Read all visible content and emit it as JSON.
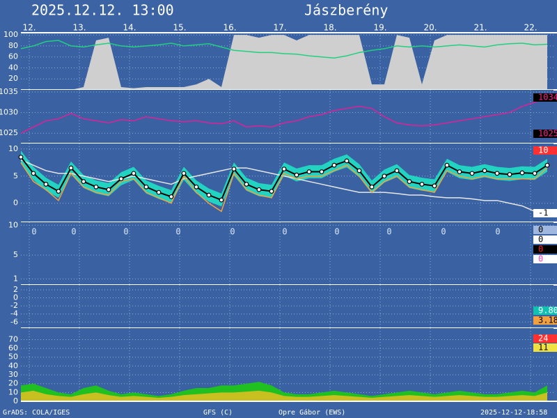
{
  "header": {
    "time": "2025.12.12.  13:00",
    "place": "Jászberény"
  },
  "footer": [
    "GrADS: COLA/IGES",
    "GFS (C)",
    "Opre Gábor (EWS)",
    "2025-12-12-18:58"
  ],
  "chart_data": [
    {
      "type": "area",
      "xlim": [
        0,
        255
      ],
      "xticks": [
        {
          "value": 4,
          "label": "12."
        },
        {
          "value": 28,
          "label": "13."
        },
        {
          "value": 52,
          "label": "14."
        },
        {
          "value": 76,
          "label": "15."
        },
        {
          "value": 100,
          "label": "16."
        },
        {
          "value": 124,
          "label": "17."
        },
        {
          "value": 148,
          "label": "18."
        },
        {
          "value": 172,
          "label": "19."
        },
        {
          "value": 196,
          "label": "20."
        },
        {
          "value": 220,
          "label": "21."
        },
        {
          "value": 244,
          "label": "22."
        }
      ],
      "ylim": [
        0,
        104
      ],
      "yticks": [
        20,
        40,
        60,
        80,
        100
      ],
      "grid": true,
      "x": [
        0,
        6,
        12,
        18,
        24,
        30,
        36,
        42,
        48,
        54,
        60,
        66,
        72,
        78,
        84,
        90,
        96,
        102,
        108,
        114,
        120,
        126,
        132,
        138,
        144,
        150,
        156,
        162,
        168,
        174,
        180,
        186,
        192,
        198,
        204,
        210,
        216,
        222,
        228,
        234,
        240,
        246,
        252
      ],
      "series": [
        {
          "style": "area",
          "color": "#cfcfcf",
          "values": [
            0,
            0,
            0,
            0,
            0,
            5,
            90,
            95,
            5,
            3,
            5,
            5,
            5,
            5,
            10,
            20,
            5,
            100,
            100,
            95,
            100,
            100,
            90,
            100,
            100,
            100,
            100,
            100,
            10,
            10,
            100,
            95,
            10,
            90,
            100,
            100,
            100,
            100,
            100,
            100,
            100,
            100,
            100
          ]
        },
        {
          "style": "line",
          "color": "#20d080",
          "values": [
            75,
            80,
            88,
            90,
            80,
            78,
            82,
            85,
            80,
            78,
            80,
            82,
            85,
            80,
            82,
            84,
            78,
            72,
            70,
            68,
            68,
            66,
            65,
            62,
            60,
            58,
            62,
            68,
            72,
            75,
            80,
            78,
            80,
            78,
            80,
            82,
            80,
            78,
            82,
            84,
            85,
            82,
            83
          ]
        }
      ]
    },
    {
      "type": "line",
      "xlim": [
        0,
        255
      ],
      "ylim": [
        1022.5,
        1035.5
      ],
      "yticks": [
        1025,
        1030,
        1035
      ],
      "grid": true,
      "x": [
        0,
        6,
        12,
        18,
        24,
        30,
        36,
        42,
        48,
        54,
        60,
        66,
        72,
        78,
        84,
        90,
        96,
        102,
        108,
        114,
        120,
        126,
        132,
        138,
        144,
        150,
        156,
        162,
        168,
        174,
        180,
        186,
        192,
        198,
        204,
        210,
        216,
        222,
        228,
        234,
        240,
        246,
        252
      ],
      "series": [
        {
          "style": "line",
          "color": "#e0209a",
          "values": [
            1025,
            1026.5,
            1028,
            1028.5,
            1029.8,
            1028.5,
            1028,
            1027.5,
            1028.3,
            1028,
            1029,
            1028.5,
            1028,
            1027.8,
            1028,
            1027.5,
            1027.3,
            1028,
            1026.5,
            1026.8,
            1026.5,
            1027.5,
            1028,
            1029,
            1029.5,
            1030.5,
            1031,
            1031.5,
            1031,
            1029,
            1027.5,
            1027,
            1026.8,
            1027,
            1027.5,
            1028,
            1028.5,
            1029,
            1029.5,
            1030,
            1031.5,
            1032.5,
            1033.5
          ]
        }
      ],
      "labels": [
        {
          "text": "1034",
          "color": "#ff2090",
          "bg": "#000000"
        },
        {
          "text": "1025",
          "color": "#ff2090",
          "bg": "#000000"
        }
      ]
    },
    {
      "type": "line",
      "xlim": [
        0,
        255
      ],
      "ylim": [
        -3.5,
        11
      ],
      "yticks": [
        0,
        5,
        10
      ],
      "grid": true,
      "x": [
        0,
        6,
        12,
        18,
        24,
        30,
        36,
        42,
        48,
        54,
        60,
        66,
        72,
        78,
        84,
        90,
        96,
        102,
        108,
        114,
        120,
        126,
        132,
        138,
        144,
        150,
        156,
        162,
        168,
        174,
        180,
        186,
        192,
        198,
        204,
        210,
        216,
        222,
        228,
        234,
        240,
        246,
        252
      ],
      "series": [
        {
          "style": "band",
          "color": "#20e8c8",
          "low": [
            7.3,
            4.3,
            2.3,
            1.0,
            5.3,
            2.8,
            1.8,
            1.3,
            3.3,
            4.3,
            1.8,
            0.8,
            0.0,
            4.3,
            1.8,
            0.3,
            -0.6,
            5.1,
            2.3,
            1.3,
            1.0,
            5.1,
            4.0,
            4.6,
            4.6,
            5.8,
            6.6,
            4.8,
            1.8,
            3.8,
            4.8,
            2.8,
            2.3,
            2.0,
            5.8,
            4.6,
            4.3,
            4.8,
            4.3,
            4.1,
            4.4,
            4.3,
            5.8
          ],
          "values": [
            9.7,
            6.7,
            4.7,
            3.4,
            7.7,
            5.2,
            4.2,
            3.7,
            5.7,
            6.7,
            4.2,
            3.2,
            2.4,
            6.7,
            4.2,
            2.7,
            1.8,
            7.5,
            4.7,
            3.7,
            3.4,
            7.5,
            6.4,
            7.0,
            7.0,
            8.2,
            9.0,
            7.2,
            4.2,
            6.2,
            7.2,
            5.2,
            4.7,
            4.4,
            8.2,
            7.0,
            6.7,
            7.2,
            6.7,
            6.5,
            6.8,
            6.7,
            8.2
          ]
        },
        {
          "style": "line",
          "color": "#e8e8e8",
          "values": [
            8,
            7,
            6,
            5.5,
            5.5,
            5,
            4.5,
            4,
            4.5,
            5,
            4.5,
            4,
            3.5,
            4.5,
            5,
            5.5,
            6,
            6.5,
            6.5,
            6,
            5.5,
            5,
            4.5,
            4,
            3.5,
            3,
            2.5,
            2,
            2,
            2,
            1.8,
            1.5,
            1.5,
            1.2,
            1,
            1,
            0.8,
            0.5,
            0.5,
            0,
            -0.5,
            -1.5,
            -2
          ]
        },
        {
          "style": "line",
          "color": "#f0a040",
          "values": [
            7.5,
            4,
            2.5,
            0.5,
            5.5,
            3,
            2,
            1.5,
            4,
            4.5,
            2,
            1,
            0,
            5,
            2,
            0,
            -1.5,
            5.5,
            2.5,
            1.5,
            1,
            5.5,
            4.5,
            5,
            5,
            6,
            7,
            5,
            2,
            4,
            5,
            3,
            2.5,
            2,
            6,
            5,
            4.5,
            5,
            4.5,
            4.5,
            4.5,
            4.5,
            6.5
          ]
        },
        {
          "style": "markers",
          "color": "#000000",
          "values": [
            8.5,
            5.5,
            3.5,
            2.2,
            6.5,
            4,
            3,
            2.5,
            4.5,
            5.5,
            3,
            2,
            1.2,
            5.5,
            3,
            1.5,
            0.6,
            6.3,
            3.5,
            2.5,
            2.2,
            6.3,
            5.2,
            5.8,
            5.8,
            7,
            7.8,
            6,
            3,
            5,
            6,
            4,
            3.5,
            3.2,
            7,
            5.8,
            5.5,
            6,
            5.5,
            5.3,
            5.6,
            5.5,
            7
          ]
        }
      ],
      "labels": [
        {
          "text": "10",
          "color": "#ffffff",
          "bg": "#ff3030"
        },
        {
          "text": "-1",
          "color": "#000000",
          "bg": "#ffffff"
        }
      ]
    },
    {
      "type": "text",
      "xlim": [
        0,
        255
      ],
      "ylim": [
        0,
        10.5
      ],
      "yticks": [
        1,
        5,
        10
      ],
      "grid": true,
      "annotations": [
        {
          "x": 3,
          "text": "0"
        },
        {
          "x": 22,
          "text": "0"
        },
        {
          "x": 47,
          "text": "0"
        },
        {
          "x": 72,
          "text": "0"
        },
        {
          "x": 98,
          "text": "0"
        },
        {
          "x": 123,
          "text": "0"
        },
        {
          "x": 148,
          "text": "0"
        },
        {
          "x": 173,
          "text": "0"
        },
        {
          "x": 199,
          "text": "0"
        },
        {
          "x": 225,
          "text": "0"
        }
      ],
      "labels": [
        {
          "text": "0",
          "color": "#000000",
          "bg": "#a0b8e0"
        },
        {
          "text": "0",
          "color": "#000000",
          "bg": "#ffffff"
        },
        {
          "text": "0",
          "color": "#ff2020",
          "bg": "#000000"
        },
        {
          "text": "0",
          "color": "#ff40c0",
          "bg": "#ffffff"
        }
      ]
    },
    {
      "type": "text",
      "xlim": [
        0,
        255
      ],
      "ylim": [
        -7.5,
        3.2
      ],
      "yticks": [
        2,
        0,
        -2,
        -4,
        -6
      ],
      "grid": true,
      "labels": [
        {
          "text": "9.80",
          "color": "#ffffff",
          "bg": "#10c0b0"
        },
        {
          "text": "3.18",
          "color": "#000000",
          "bg": "#f0a040"
        }
      ]
    },
    {
      "type": "area",
      "xlim": [
        0,
        255
      ],
      "ylim": [
        0,
        83
      ],
      "yticks": [
        0,
        10,
        20,
        30,
        40,
        50,
        60,
        70
      ],
      "grid": true,
      "x": [
        0,
        6,
        12,
        18,
        24,
        30,
        36,
        42,
        48,
        54,
        60,
        66,
        72,
        78,
        84,
        90,
        96,
        102,
        108,
        114,
        120,
        126,
        132,
        138,
        144,
        150,
        156,
        162,
        168,
        174,
        180,
        186,
        192,
        198,
        204,
        210,
        216,
        222,
        228,
        234,
        240,
        246,
        252
      ],
      "series": [
        {
          "style": "area",
          "color": "#20c020",
          "values": [
            18,
            20,
            15,
            10,
            8,
            15,
            18,
            12,
            8,
            10,
            8,
            6,
            8,
            12,
            15,
            15,
            18,
            18,
            20,
            22,
            18,
            10,
            8,
            8,
            10,
            12,
            10,
            8,
            6,
            8,
            10,
            12,
            10,
            8,
            10,
            12,
            10,
            8,
            8,
            10,
            12,
            10,
            18
          ]
        },
        {
          "style": "area",
          "color": "#c8c020",
          "values": [
            10,
            12,
            8,
            6,
            5,
            8,
            10,
            7,
            5,
            6,
            5,
            4,
            5,
            7,
            8,
            9,
            10,
            10,
            11,
            12,
            10,
            6,
            5,
            5,
            6,
            7,
            6,
            5,
            4,
            5,
            6,
            7,
            6,
            5,
            6,
            7,
            6,
            5,
            5,
            6,
            7,
            6,
            10
          ]
        }
      ],
      "labels": [
        {
          "text": "24",
          "color": "#ffffff",
          "bg": "#ff3030"
        },
        {
          "text": "11",
          "color": "#000000",
          "bg": "#f0e040"
        }
      ]
    }
  ]
}
